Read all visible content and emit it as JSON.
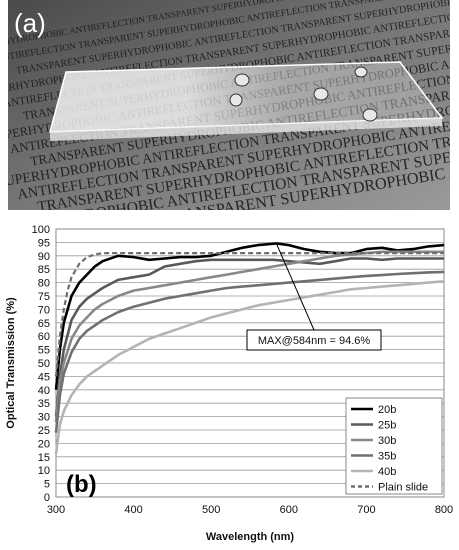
{
  "photo": {
    "panel_label": "(a)",
    "background_words": [
      "SUPERHYDROPHOBIC",
      "ANTIREFLECTION",
      "TRANSPARENT"
    ]
  },
  "chart_data": {
    "type": "line",
    "panel_label": "(b)",
    "xlabel": "Wavelength (nm)",
    "ylabel": "Optical Transmission (%)",
    "xlim": [
      300,
      800
    ],
    "ylim": [
      0,
      100
    ],
    "xticks": [
      300,
      400,
      500,
      600,
      700,
      800
    ],
    "yticks": [
      0,
      5,
      10,
      15,
      20,
      25,
      30,
      35,
      40,
      45,
      50,
      55,
      60,
      65,
      70,
      75,
      80,
      85,
      90,
      95,
      100
    ],
    "grid": "horizontal",
    "legend_position": "bottom-right",
    "annotation": {
      "text": "MAX@584nm = 94.6%",
      "x": 584,
      "y": 94.6
    },
    "series": [
      {
        "name": "20b",
        "color": "#000000",
        "style": "solid",
        "x": [
          300,
          305,
          310,
          320,
          330,
          340,
          350,
          360,
          380,
          400,
          420,
          440,
          460,
          480,
          500,
          520,
          540,
          560,
          584,
          600,
          620,
          640,
          660,
          680,
          700,
          720,
          740,
          760,
          780,
          800
        ],
        "y": [
          40,
          55,
          65,
          75,
          80,
          83,
          86,
          88,
          90,
          89.5,
          88.5,
          89,
          89.5,
          89.5,
          90,
          91.5,
          93,
          94,
          94.6,
          94,
          92.5,
          91.5,
          91,
          91,
          92.5,
          93,
          92,
          92.5,
          93.5,
          94
        ]
      },
      {
        "name": "25b",
        "color": "#595959",
        "style": "solid",
        "x": [
          300,
          305,
          310,
          320,
          330,
          340,
          350,
          360,
          380,
          400,
          420,
          440,
          460,
          480,
          500,
          520,
          540,
          560,
          580,
          600,
          620,
          640,
          660,
          680,
          700,
          720,
          740,
          760,
          780,
          800
        ],
        "y": [
          30,
          45,
          55,
          66,
          71,
          74,
          76,
          78,
          81,
          82,
          83,
          86,
          87,
          88,
          88.5,
          88.5,
          88.5,
          88.5,
          88.5,
          88,
          87.5,
          87,
          88,
          89,
          89,
          88.5,
          89,
          89,
          89,
          89
        ]
      },
      {
        "name": "30b",
        "color": "#888888",
        "style": "solid",
        "x": [
          300,
          305,
          310,
          320,
          330,
          340,
          350,
          360,
          380,
          400,
          420,
          440,
          460,
          480,
          500,
          520,
          540,
          560,
          580,
          600,
          620,
          640,
          660,
          680,
          700,
          720,
          740,
          760,
          780,
          800
        ],
        "y": [
          28,
          43,
          50,
          59,
          64,
          67,
          70,
          72,
          75,
          77,
          78,
          79,
          80,
          81,
          82,
          83,
          84,
          85,
          86,
          87,
          88,
          89,
          90,
          90.5,
          91,
          91.5,
          91.5,
          91.5,
          91.5,
          91.5
        ]
      },
      {
        "name": "35b",
        "color": "#707070",
        "style": "solid",
        "x": [
          300,
          305,
          310,
          320,
          330,
          340,
          350,
          360,
          380,
          400,
          420,
          440,
          460,
          480,
          500,
          520,
          540,
          560,
          580,
          600,
          620,
          640,
          660,
          680,
          700,
          720,
          740,
          760,
          780,
          800
        ],
        "y": [
          24,
          38,
          46,
          54,
          59,
          62,
          64,
          66,
          69,
          71,
          72.5,
          74,
          75,
          76,
          77,
          78,
          78.5,
          79,
          79.5,
          80,
          80.5,
          81,
          81.5,
          82,
          82.5,
          82.8,
          83.2,
          83.5,
          83.8,
          84
        ]
      },
      {
        "name": "40b",
        "color": "#b4b4b4",
        "style": "solid",
        "x": [
          300,
          305,
          310,
          320,
          330,
          340,
          350,
          360,
          380,
          400,
          420,
          440,
          460,
          480,
          500,
          520,
          540,
          560,
          580,
          600,
          620,
          640,
          660,
          680,
          700,
          720,
          740,
          760,
          780,
          800
        ],
        "y": [
          16,
          27,
          32,
          38,
          42,
          45,
          47,
          49,
          53,
          56,
          59,
          61,
          63,
          65,
          67,
          68.5,
          70,
          71.5,
          72.5,
          73.5,
          74.5,
          75.5,
          76.5,
          77.5,
          78,
          78.5,
          79,
          79.5,
          80,
          80.5
        ]
      },
      {
        "name": "Plain slide",
        "color": "#6e6e6e",
        "style": "dashed",
        "x": [
          300,
          305,
          310,
          315,
          320,
          330,
          340,
          350,
          360,
          380,
          400,
          450,
          500,
          550,
          600,
          650,
          700,
          750,
          800
        ],
        "y": [
          45,
          60,
          70,
          77,
          82,
          87,
          89.5,
          90.5,
          91,
          91,
          91,
          91,
          91,
          91,
          91,
          91,
          91,
          91,
          91
        ]
      }
    ]
  }
}
